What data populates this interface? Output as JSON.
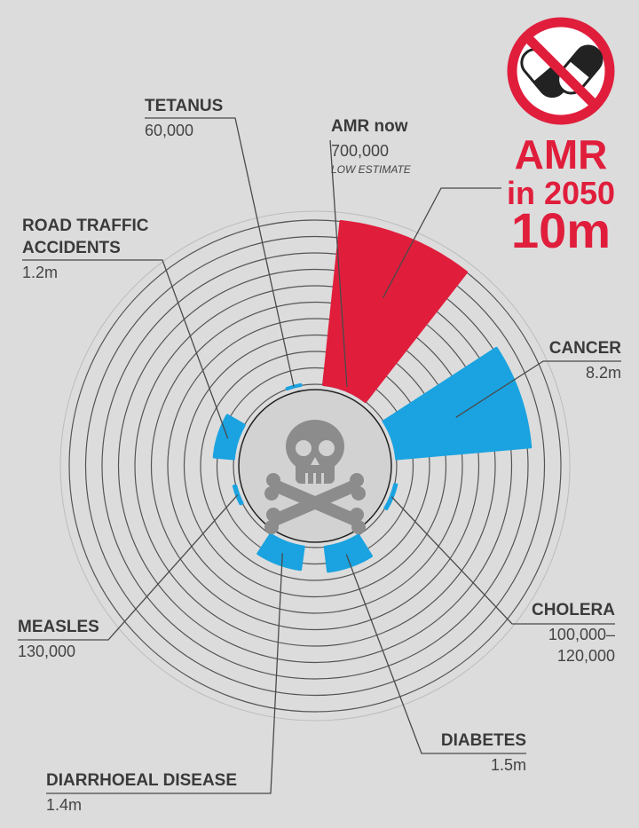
{
  "chart_data": {
    "type": "radial_bar",
    "rticks": [
      0,
      1000000,
      2000000,
      3000000,
      4000000,
      5000000,
      6000000,
      7000000,
      8000000,
      9000000,
      10000000
    ],
    "segments": [
      {
        "name": "TETANUS",
        "value": 60000,
        "label": "60,000",
        "color": "#1aa3e0"
      },
      {
        "name": "AMR now",
        "value": 700000,
        "label": "700,000",
        "note": "LOW ESTIMATE",
        "color": "#1aa3e0"
      },
      {
        "name": [
          "AMR",
          "in 2050"
        ],
        "value": 10000000,
        "label": "10m",
        "color": "#e01e3c"
      },
      {
        "name": "CANCER",
        "value": 8200000,
        "label": "8.2m",
        "color": "#1aa3e0"
      },
      {
        "name": "CHOLERA",
        "value": [
          100000,
          120000
        ],
        "label": [
          "100,000–",
          "120,000"
        ],
        "color": "#1aa3e0"
      },
      {
        "name": "DIABETES",
        "value": 1500000,
        "label": "1.5m",
        "color": "#1aa3e0"
      },
      {
        "name": "DIARRHOEAL DISEASE",
        "value": 1400000,
        "label": "1.4m",
        "color": "#1aa3e0"
      },
      {
        "name": "MEASLES",
        "value": 130000,
        "label": "130,000",
        "color": "#1aa3e0"
      },
      {
        "name": [
          "ROAD TRAFFIC",
          "ACCIDENTS"
        ],
        "value": 1200000,
        "label": "1.2m",
        "color": "#1aa3e0"
      }
    ]
  }
}
